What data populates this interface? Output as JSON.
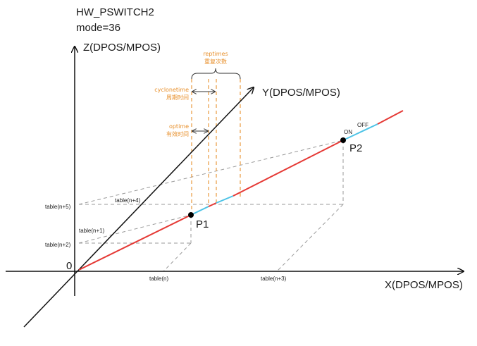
{
  "header": {
    "line1": "HW_PSWITCH2",
    "line2": "mode=36"
  },
  "axes": {
    "z_label": "Z(DPOS/MPOS)",
    "y_label": "Y(DPOS/MPOS)",
    "x_label": "X(DPOS/MPOS)",
    "origin": "0"
  },
  "points": {
    "p1": "P1",
    "p2": "P2"
  },
  "states": {
    "on": "ON",
    "off": "OFF"
  },
  "timing": {
    "reptimes_en": "reptimes",
    "reptimes_cn": "重复次数",
    "cyclonetime_en": "cyclonetime",
    "cyclonetime_cn": "周期时间",
    "optime_en": "optime",
    "optime_cn": "有效时间"
  },
  "table_labels": {
    "n": "table(n)",
    "n1": "table(n+1)",
    "n2": "table(n+2)",
    "n3": "table(n+3)",
    "n4": "table(n+4)",
    "n5": "table(n+5)"
  },
  "colors": {
    "axis": "#111111",
    "path_red": "#e53935",
    "path_cyan": "#4dc3e6",
    "dashed_gray": "#9a9a9a",
    "annotation_orange": "#e8902c"
  }
}
